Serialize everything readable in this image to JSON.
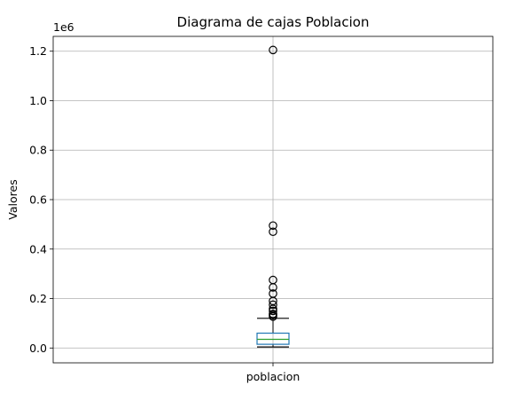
{
  "chart_data": {
    "type": "boxplot",
    "title": "Diagrama de cajas Poblacion",
    "xlabel": "",
    "ylabel": "Valores",
    "categories": [
      "poblacion"
    ],
    "y_scale_label": "1e6",
    "ylim": [
      -0.06,
      1.26
    ],
    "y_ticks": [
      0.0,
      0.2,
      0.4,
      0.6,
      0.8,
      1.0,
      1.2
    ],
    "y_tick_labels": [
      "0.0",
      "0.2",
      "0.4",
      "0.6",
      "0.8",
      "1.0",
      "1.2"
    ],
    "grid": true,
    "box": {
      "category": "poblacion",
      "whisker_low": 0.004,
      "q1": 0.015,
      "median": 0.035,
      "q3": 0.06,
      "whisker_high": 0.12,
      "outliers": [
        0.127,
        0.133,
        0.138,
        0.15,
        0.158,
        0.175,
        0.19,
        0.22,
        0.245,
        0.275,
        0.47,
        0.495,
        1.205
      ]
    },
    "colors": {
      "box": "#1f77b4",
      "median": "#2ca02c",
      "whisker": "#000000",
      "grid": "#b0b0b0",
      "outlier_edge": "#000000"
    }
  }
}
